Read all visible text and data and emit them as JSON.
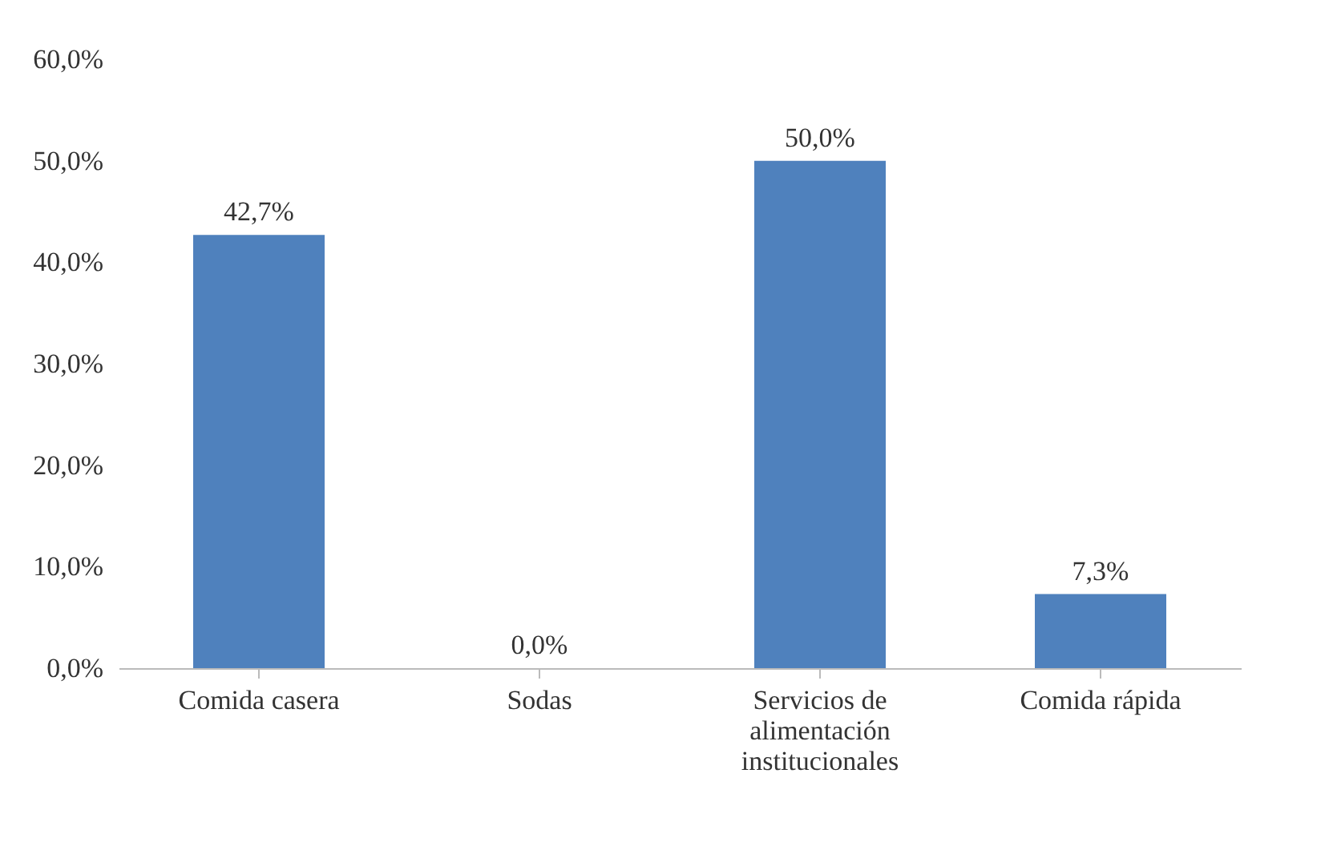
{
  "chart_data": {
    "type": "bar",
    "categories": [
      "Comida casera",
      "Sodas",
      "Servicios de alimentación institucionales",
      "Comida rápida"
    ],
    "values": [
      42.7,
      0,
      50,
      7.3
    ],
    "color": "#4f81bd",
    "value_labels": [
      "42,7%",
      "0,0%",
      "50,0%",
      "7,3%"
    ],
    "ylim": [
      0,
      60
    ],
    "yticks": [
      {
        "value": 0,
        "label": "0,0%"
      },
      {
        "value": 10,
        "label": "10,0%"
      },
      {
        "value": 20,
        "label": "20,0%"
      },
      {
        "value": 30,
        "label": "30,0%"
      },
      {
        "value": 40,
        "label": "40,0%"
      },
      {
        "value": 50,
        "label": "50,0%"
      },
      {
        "value": 60,
        "label": "60,0%"
      }
    ],
    "grid": false
  }
}
